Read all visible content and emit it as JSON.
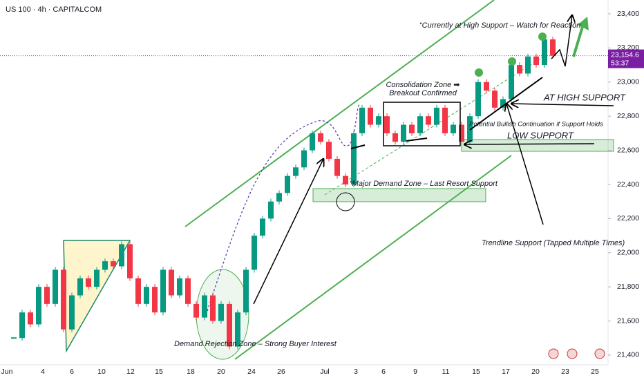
{
  "chart_data": {
    "type": "candlestick",
    "title": "US 100 · 4h · CAPITALCOM",
    "up_color": "#089981",
    "down_color": "#f23645",
    "values": [
      21500,
      21650,
      21580,
      21800,
      21700,
      21900,
      21550,
      21750,
      21850,
      21800,
      21900,
      21950,
      21920,
      22050,
      21850,
      21700,
      21800,
      21650,
      21900,
      21750,
      21850,
      21700,
      21620,
      21750,
      21600,
      21700,
      21450,
      21650,
      21900,
      22100,
      22200,
      22300,
      22350,
      22450,
      22500,
      22600,
      22700,
      22650,
      22550,
      22450,
      22400,
      22700,
      22850,
      22750,
      22800,
      22700,
      22650,
      22750,
      22700,
      22800,
      22750,
      22850,
      22700,
      22750,
      22650,
      22800,
      23000,
      22950,
      22850,
      22900,
      23100,
      23050,
      23150,
      23100,
      23250,
      23154.6
    ],
    "last_price_label": "23,154.6",
    "countdown": "53:37",
    "ylim": [
      21335,
      23481
    ],
    "yticks": [
      {
        "value": 21400,
        "label": "21,400"
      },
      {
        "value": 21600,
        "label": "21,600"
      },
      {
        "value": 21800,
        "label": "21,800"
      },
      {
        "value": 22000,
        "label": "22,000"
      },
      {
        "value": 22200,
        "label": "22,200"
      },
      {
        "value": 22400,
        "label": "22,400"
      },
      {
        "value": 22600,
        "label": "22,600"
      },
      {
        "value": 22800,
        "label": "22,800"
      },
      {
        "value": 23000,
        "label": "23,000"
      },
      {
        "value": 23200,
        "label": "23,200"
      },
      {
        "value": 23400,
        "label": "23,400"
      }
    ],
    "x_tick_labels": [
      "Jun",
      "4",
      "6",
      "10",
      "12",
      "15",
      "18",
      "20",
      "24",
      "26",
      "Jul",
      "3",
      "6",
      "9",
      "11",
      "15",
      "17",
      "20",
      "23",
      "25"
    ],
    "annotations": {
      "watch": "“Currently at High Support – Watch for Reaction",
      "consolidation_1": "Consolidation Zone ➡",
      "consolidation_2": "Breakout Confirmed",
      "high_support": "AT HIGH SUPPORT",
      "continuation": "Potential Bullish Continuation if Support Holds",
      "low_support": "LOW SUPPORT",
      "major_demand": "“Major Demand Zone – Last Resort Support",
      "trendline": "Trendline Support (Tapped Multiple Times)",
      "demand_rejection": "Demand Rejection Zone – Strong Buyer Interest"
    }
  }
}
